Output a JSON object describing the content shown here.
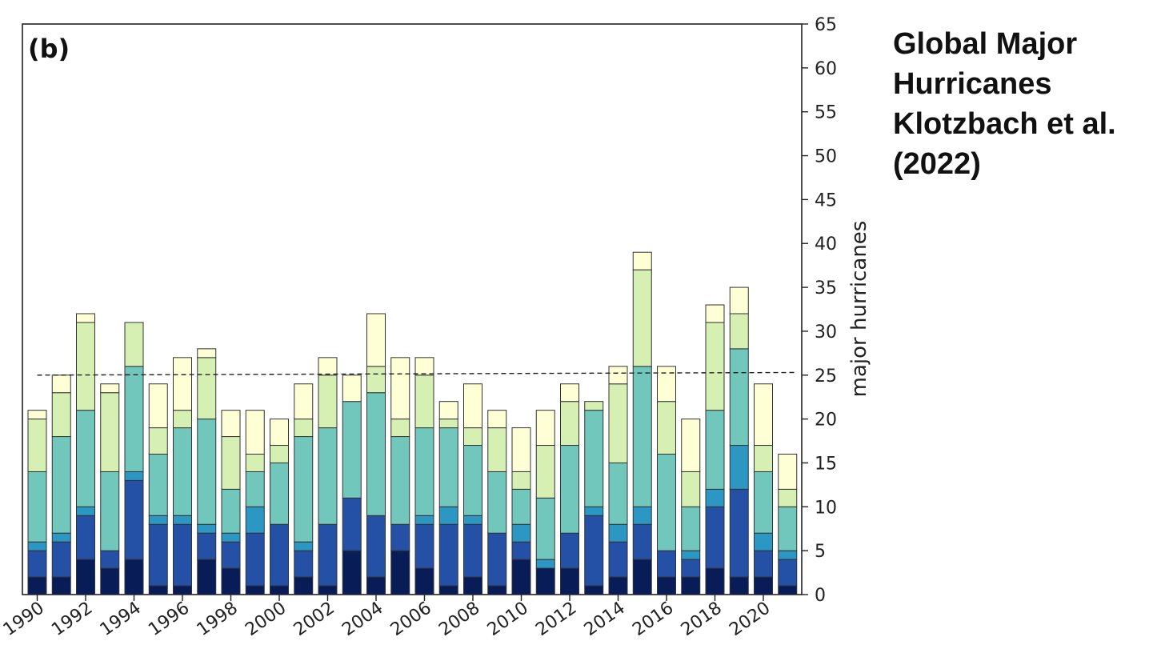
{
  "side_title": {
    "line1": "Global Major",
    "line2": "Hurricanes",
    "line3": "Klotzbach et al.",
    "line4": "(2022)"
  },
  "colors": {
    "seg1": "#081d58",
    "seg2": "#2450a6",
    "seg3": "#2c97c3",
    "seg4": "#72c7bd",
    "seg5": "#d6efb3",
    "seg6": "#ffffd6",
    "edge": "#333333",
    "mean_line": "#222222"
  },
  "chart_data": {
    "type": "bar",
    "stacked": true,
    "panel_label": "(b)",
    "ylabel": "major hurricanes",
    "xlabel": "",
    "ylim": [
      0,
      65
    ],
    "yticks": [
      0,
      5,
      10,
      15,
      20,
      25,
      30,
      35,
      40,
      45,
      50,
      55,
      60,
      65
    ],
    "y_axis_side": "right",
    "xtick_labels": [
      "1990",
      "1992",
      "1994",
      "1996",
      "1998",
      "2000",
      "2002",
      "2004",
      "2006",
      "2008",
      "2010",
      "2012",
      "2014",
      "2016",
      "2018",
      "2020"
    ],
    "categories": [
      1990,
      1991,
      1992,
      1993,
      1994,
      1995,
      1996,
      1997,
      1998,
      1999,
      2000,
      2001,
      2002,
      2003,
      2004,
      2005,
      2006,
      2007,
      2008,
      2009,
      2010,
      2011,
      2012,
      2013,
      2014,
      2015,
      2016,
      2017,
      2018,
      2019,
      2020,
      2021
    ],
    "mean_line": {
      "style": "dashed",
      "y_start": 25,
      "y_end": 25.3
    },
    "series": [
      {
        "values": [
          2,
          2,
          4,
          3,
          4,
          1,
          1,
          4,
          3,
          1,
          1,
          2,
          1,
          5,
          2,
          5,
          3,
          1,
          2,
          1,
          4,
          3,
          3,
          1,
          2,
          4,
          2,
          2,
          3,
          2,
          2,
          1
        ]
      },
      {
        "values": [
          3,
          4,
          5,
          2,
          9,
          7,
          7,
          3,
          3,
          6,
          7,
          3,
          7,
          6,
          7,
          3,
          5,
          7,
          6,
          6,
          2,
          0,
          4,
          8,
          4,
          4,
          3,
          2,
          7,
          10,
          3,
          3
        ]
      },
      {
        "values": [
          1,
          1,
          1,
          0,
          1,
          1,
          1,
          1,
          1,
          3,
          0,
          1,
          0,
          0,
          0,
          0,
          1,
          2,
          1,
          0,
          2,
          1,
          0,
          1,
          2,
          2,
          0,
          1,
          2,
          5,
          2,
          1
        ]
      },
      {
        "values": [
          8,
          11,
          11,
          9,
          12,
          7,
          10,
          12,
          5,
          4,
          7,
          12,
          11,
          11,
          14,
          10,
          10,
          9,
          8,
          7,
          4,
          7,
          10,
          11,
          7,
          16,
          11,
          5,
          9,
          11,
          7,
          5
        ]
      },
      {
        "values": [
          6,
          5,
          10,
          9,
          5,
          3,
          2,
          7,
          6,
          2,
          2,
          2,
          6,
          0,
          3,
          2,
          6,
          1,
          2,
          5,
          2,
          6,
          5,
          1,
          9,
          11,
          6,
          4,
          10,
          4,
          3,
          2
        ]
      },
      {
        "values": [
          1,
          2,
          1,
          1,
          0,
          5,
          6,
          1,
          3,
          5,
          3,
          4,
          2,
          3,
          6,
          7,
          2,
          2,
          5,
          2,
          5,
          4,
          2,
          0,
          2,
          2,
          4,
          6,
          2,
          3,
          7,
          4
        ]
      }
    ],
    "totals": [
      21,
      25,
      32,
      24,
      31,
      24,
      27,
      28,
      21,
      21,
      20,
      24,
      27,
      25,
      32,
      27,
      27,
      22,
      24,
      21,
      19,
      21,
      24,
      22,
      26,
      39,
      26,
      20,
      33,
      35,
      24,
      16
    ],
    "grid": false,
    "legend": "none"
  }
}
